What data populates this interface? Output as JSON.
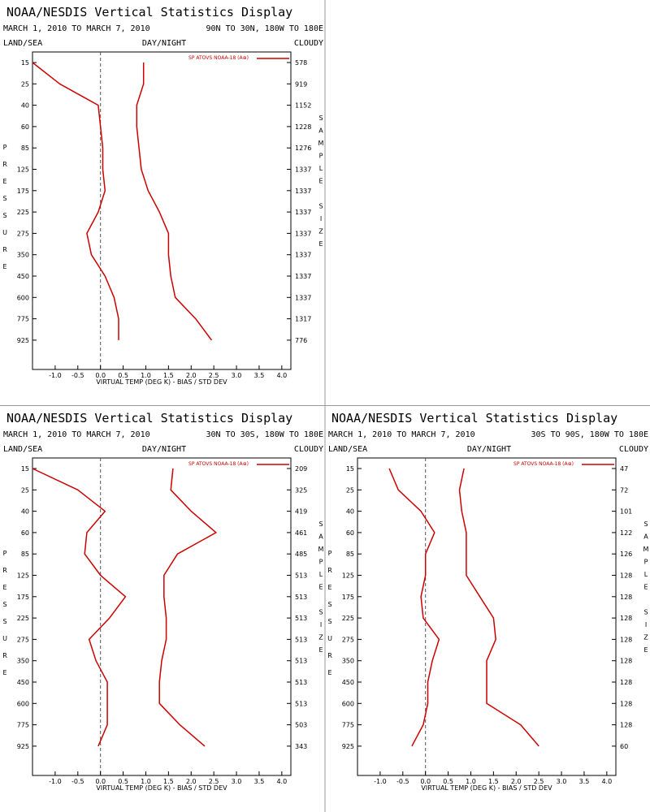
{
  "page": {
    "divider_color": "#999999",
    "series_color": "#cc0000",
    "axis_color": "#000000",
    "zero_line_color": "#555555"
  },
  "chart_data": [
    {
      "type": "line",
      "title": "NOAA/NESDIS Vertical Statistics Display",
      "date_range": "MARCH 1, 2010 TO MARCH 7, 2010",
      "region": "90N TO 30N, 180W TO 180E",
      "header_left": "LAND/SEA",
      "header_center": "DAY/NIGHT",
      "header_right": "CLOUDY",
      "xlabel": "VIRTUAL TEMP (DEG K) - BIAS / STD DEV",
      "ylabel": "PRESSURE",
      "y2label": "SAMPLE SIZE",
      "legend": "SP ATOVS NOAA-18 (A⊕)",
      "xlim": [
        -1.5,
        4.2
      ],
      "xticks": [
        "-1.0",
        "-0.5",
        "0.0",
        "0.5",
        "1.0",
        "1.5",
        "2.0",
        "2.5",
        "3.0",
        "3.5",
        "4.0"
      ],
      "pressure_levels": [
        "15",
        "25",
        "40",
        "60",
        "85",
        "125",
        "175",
        "225",
        "275",
        "350",
        "450",
        "600",
        "775",
        "925"
      ],
      "sample_size": [
        "578",
        "919",
        "1152",
        "1228",
        "1276",
        "1337",
        "1337",
        "1337",
        "1337",
        "1337",
        "1337",
        "1337",
        "1317",
        "776"
      ],
      "series": [
        {
          "values": [
            -1.5,
            -0.9,
            -0.05,
            0.0,
            0.05,
            0.05,
            0.1,
            -0.05,
            -0.3,
            -0.2,
            0.1,
            0.3,
            0.4,
            0.4
          ]
        },
        {
          "values": [
            0.95,
            0.95,
            0.8,
            0.8,
            0.85,
            0.9,
            1.05,
            1.3,
            1.5,
            1.5,
            1.55,
            1.65,
            2.1,
            2.45
          ]
        }
      ]
    },
    {
      "type": "line",
      "title": "NOAA/NESDIS Vertical Statistics Display",
      "date_range": "MARCH 1, 2010 TO MARCH 7, 2010",
      "region": "30N TO 30S, 180W TO 180E",
      "header_left": "LAND/SEA",
      "header_center": "DAY/NIGHT",
      "header_right": "CLOUDY",
      "xlabel": "VIRTUAL TEMP (DEG K) - BIAS / STD DEV",
      "ylabel": "PRESSURE",
      "y2label": "SAMPLE SIZE",
      "legend": "SP ATOVS NOAA-18 (A⊕)",
      "xlim": [
        -1.5,
        4.2
      ],
      "xticks": [
        "-1.0",
        "-0.5",
        "0.0",
        "0.5",
        "1.0",
        "1.5",
        "2.0",
        "2.5",
        "3.0",
        "3.5",
        "4.0"
      ],
      "pressure_levels": [
        "15",
        "25",
        "40",
        "60",
        "85",
        "125",
        "175",
        "225",
        "275",
        "350",
        "450",
        "600",
        "775",
        "925"
      ],
      "sample_size": [
        "209",
        "325",
        "419",
        "461",
        "485",
        "513",
        "513",
        "513",
        "513",
        "513",
        "513",
        "513",
        "503",
        "343"
      ],
      "series": [
        {
          "values": [
            -1.5,
            -0.5,
            0.1,
            -0.3,
            -0.35,
            0.0,
            0.55,
            0.2,
            -0.25,
            -0.1,
            0.15,
            0.15,
            0.15,
            -0.05
          ]
        },
        {
          "values": [
            1.6,
            1.55,
            2.0,
            2.55,
            1.7,
            1.4,
            1.4,
            1.45,
            1.45,
            1.35,
            1.3,
            1.3,
            1.75,
            2.3
          ]
        }
      ]
    },
    {
      "type": "line",
      "title": "NOAA/NESDIS Vertical Statistics Display",
      "date_range": "MARCH 1, 2010 TO MARCH 7, 2010",
      "region": "30S TO 90S, 180W TO 180E",
      "header_left": "LAND/SEA",
      "header_center": "DAY/NIGHT",
      "header_right": "CLOUDY",
      "xlabel": "VIRTUAL TEMP (DEG K) - BIAS / STD DEV",
      "ylabel": "PRESSURE",
      "y2label": "SAMPLE SIZE",
      "legend": "SP ATOVS NOAA-18 (A⊕)",
      "xlim": [
        -1.5,
        4.2
      ],
      "xticks": [
        "-1.0",
        "-0.5",
        "0.0",
        "0.5",
        "1.0",
        "1.5",
        "2.0",
        "2.5",
        "3.0",
        "3.5",
        "4.0"
      ],
      "pressure_levels": [
        "15",
        "25",
        "40",
        "60",
        "85",
        "125",
        "175",
        "225",
        "275",
        "350",
        "450",
        "600",
        "775",
        "925"
      ],
      "sample_size": [
        "47",
        "72",
        "101",
        "122",
        "126",
        "128",
        "128",
        "128",
        "128",
        "128",
        "128",
        "128",
        "128",
        "60"
      ],
      "series": [
        {
          "values": [
            -0.8,
            -0.6,
            -0.1,
            0.2,
            0.0,
            0.0,
            -0.1,
            -0.05,
            0.3,
            0.15,
            0.05,
            0.05,
            -0.05,
            -0.3
          ]
        },
        {
          "values": [
            0.85,
            0.75,
            0.8,
            0.9,
            0.9,
            0.9,
            1.2,
            1.5,
            1.55,
            1.35,
            1.35,
            1.35,
            2.1,
            2.5
          ]
        }
      ]
    }
  ]
}
